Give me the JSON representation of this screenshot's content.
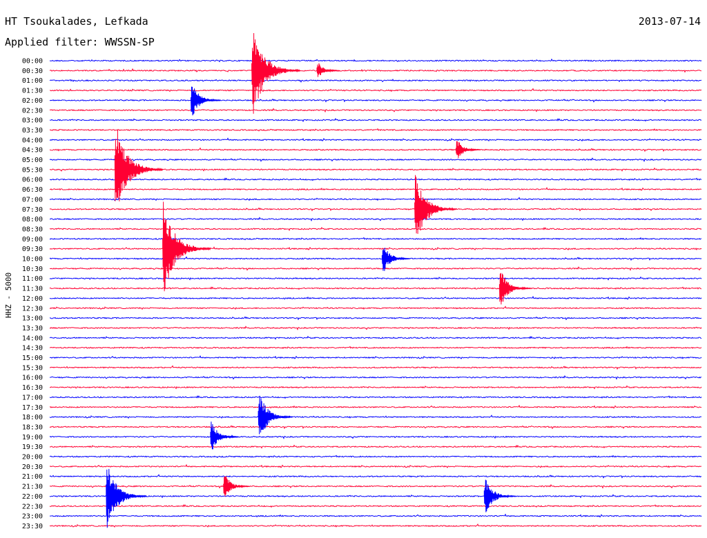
{
  "header": {
    "title": "HT Tsoukalades, Lefkada",
    "filter": "Applied filter: WWSSN-SP",
    "date": "2013-07-14"
  },
  "colors": {
    "blue": "#0000ff",
    "red": "#ff0033"
  },
  "chart_data": {
    "type": "line",
    "subtype": "helicorder",
    "ylabel": "HHZ - 5000",
    "grid": false,
    "traces": [
      {
        "label": "00:00",
        "color": "blue"
      },
      {
        "label": "00:30",
        "color": "red"
      },
      {
        "label": "01:00",
        "color": "blue"
      },
      {
        "label": "01:30",
        "color": "red"
      },
      {
        "label": "02:00",
        "color": "blue"
      },
      {
        "label": "02:30",
        "color": "red"
      },
      {
        "label": "03:00",
        "color": "blue"
      },
      {
        "label": "03:30",
        "color": "red"
      },
      {
        "label": "04:00",
        "color": "blue"
      },
      {
        "label": "04:30",
        "color": "red"
      },
      {
        "label": "05:00",
        "color": "blue"
      },
      {
        "label": "05:30",
        "color": "red"
      },
      {
        "label": "06:00",
        "color": "blue"
      },
      {
        "label": "06:30",
        "color": "red"
      },
      {
        "label": "07:00",
        "color": "blue"
      },
      {
        "label": "07:30",
        "color": "red"
      },
      {
        "label": "08:00",
        "color": "blue"
      },
      {
        "label": "08:30",
        "color": "red"
      },
      {
        "label": "09:00",
        "color": "blue"
      },
      {
        "label": "09:30",
        "color": "red"
      },
      {
        "label": "10:00",
        "color": "blue"
      },
      {
        "label": "10:30",
        "color": "red"
      },
      {
        "label": "11:00",
        "color": "blue"
      },
      {
        "label": "11:30",
        "color": "red"
      },
      {
        "label": "12:00",
        "color": "blue"
      },
      {
        "label": "12:30",
        "color": "red"
      },
      {
        "label": "13:00",
        "color": "blue"
      },
      {
        "label": "13:30",
        "color": "red"
      },
      {
        "label": "14:00",
        "color": "blue"
      },
      {
        "label": "14:30",
        "color": "red"
      },
      {
        "label": "15:00",
        "color": "blue"
      },
      {
        "label": "15:30",
        "color": "red"
      },
      {
        "label": "16:00",
        "color": "blue"
      },
      {
        "label": "16:30",
        "color": "red"
      },
      {
        "label": "17:00",
        "color": "blue"
      },
      {
        "label": "17:30",
        "color": "red"
      },
      {
        "label": "18:00",
        "color": "blue"
      },
      {
        "label": "18:30",
        "color": "red"
      },
      {
        "label": "19:00",
        "color": "blue"
      },
      {
        "label": "19:30",
        "color": "red"
      },
      {
        "label": "20:00",
        "color": "blue"
      },
      {
        "label": "20:30",
        "color": "red"
      },
      {
        "label": "21:00",
        "color": "blue"
      },
      {
        "label": "21:30",
        "color": "red"
      },
      {
        "label": "22:00",
        "color": "blue"
      },
      {
        "label": "22:30",
        "color": "red"
      },
      {
        "label": "23:00",
        "color": "blue"
      },
      {
        "label": "23:30",
        "color": "red"
      }
    ],
    "events": [
      {
        "trace": "00:30",
        "minute": 9.3,
        "amplitude": 1.0
      },
      {
        "trace": "00:30",
        "minute": 12.3,
        "amplitude": 0.2
      },
      {
        "trace": "02:00",
        "minute": 6.5,
        "amplitude": 0.4
      },
      {
        "trace": "04:30",
        "minute": 18.7,
        "amplitude": 0.25
      },
      {
        "trace": "05:30",
        "minute": 3.0,
        "amplitude": 1.0
      },
      {
        "trace": "07:30",
        "minute": 16.8,
        "amplitude": 0.8
      },
      {
        "trace": "09:30",
        "minute": 5.2,
        "amplitude": 1.0
      },
      {
        "trace": "10:00",
        "minute": 15.3,
        "amplitude": 0.35
      },
      {
        "trace": "11:30",
        "minute": 20.7,
        "amplitude": 0.45
      },
      {
        "trace": "18:00",
        "minute": 9.6,
        "amplitude": 0.55
      },
      {
        "trace": "19:00",
        "minute": 7.4,
        "amplitude": 0.35
      },
      {
        "trace": "21:30",
        "minute": 8.0,
        "amplitude": 0.3
      },
      {
        "trace": "22:00",
        "minute": 2.6,
        "amplitude": 0.75
      },
      {
        "trace": "22:00",
        "minute": 20.0,
        "amplitude": 0.45
      }
    ]
  }
}
